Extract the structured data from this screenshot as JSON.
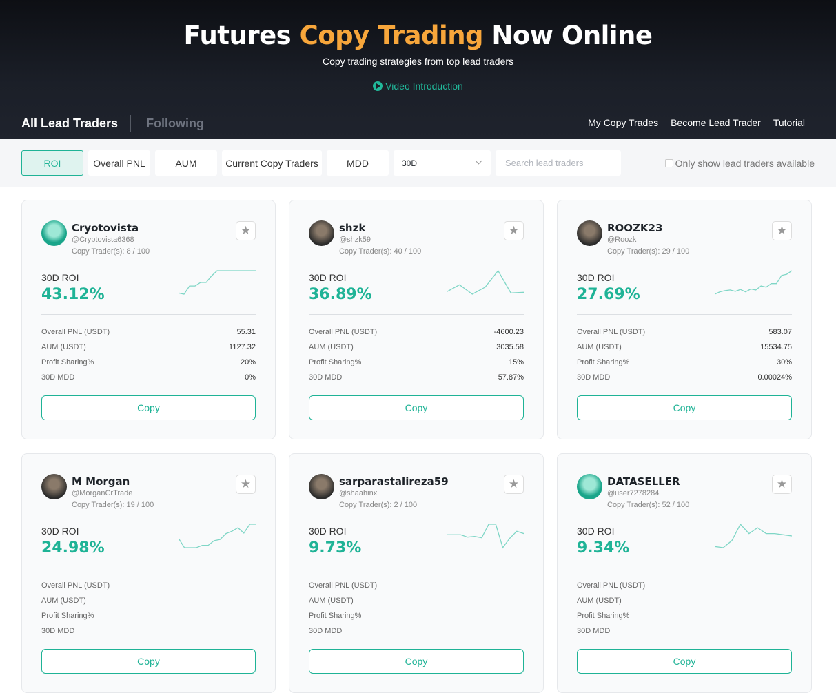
{
  "hero": {
    "title_pre": "Futures ",
    "title_hl": "Copy Trading",
    "title_post": " Now Online",
    "subtitle": "Copy trading strategies from top lead traders",
    "video": "Video Introduction",
    "accent": "#f7a63b",
    "green": "#1fb396"
  },
  "tabs": [
    {
      "label": "All Lead Traders",
      "active": true
    },
    {
      "label": "Following",
      "active": false
    }
  ],
  "links": [
    "My Copy Trades",
    "Become Lead Trader",
    "Tutorial"
  ],
  "filters": {
    "sort": [
      "ROI",
      "Overall PNL",
      "AUM",
      "Current Copy Traders",
      "MDD"
    ],
    "active": "ROI",
    "period": "30D",
    "search_placeholder": "Search lead traders",
    "available_label": "Only show lead traders available"
  },
  "card_labels": {
    "roi": "30D ROI",
    "pnl": "Overall PNL (USDT)",
    "aum": "AUM (USDT)",
    "share": "Profit Sharing%",
    "mdd": "30D MDD",
    "copy": "Copy"
  },
  "traders": [
    {
      "name": "Cryotovista",
      "handle": "@Cryptovista6368",
      "copiers": "Copy Trader(s): 8 / 100",
      "roi": "43.12%",
      "pnl": "55.31",
      "aum": "1127.32",
      "share": "20%",
      "mdd": "0%",
      "avatar": "teal",
      "spark": [
        5,
        0,
        35,
        35,
        50,
        50,
        78,
        100,
        100,
        100,
        100,
        100,
        100,
        100,
        100
      ]
    },
    {
      "name": "shzk",
      "handle": "@shzk59",
      "copiers": "Copy Trader(s): 40 / 100",
      "roi": "36.89%",
      "pnl": "-4600.23",
      "aum": "3035.58",
      "share": "15%",
      "mdd": "57.87%",
      "avatar": "dark",
      "spark": [
        10,
        40,
        0,
        30,
        100,
        5,
        8
      ]
    },
    {
      "name": "ROOZK23",
      "handle": "@Roozk",
      "copiers": "Copy Trader(s): 29 / 100",
      "roi": "27.69%",
      "pnl": "583.07",
      "aum": "15534.75",
      "share": "30%",
      "mdd": "0.00024%",
      "avatar": "dark",
      "spark": [
        0,
        10,
        15,
        18,
        12,
        20,
        10,
        22,
        18,
        35,
        30,
        45,
        45,
        80,
        85,
        100
      ]
    },
    {
      "name": "M Morgan",
      "handle": "@MorganCrTrade",
      "copiers": "Copy Trader(s): 19 / 100",
      "roi": "24.98%",
      "pnl": "",
      "aum": "",
      "share": "",
      "mdd": "",
      "avatar": "dark",
      "spark": [
        40,
        0,
        0,
        0,
        10,
        10,
        30,
        35,
        60,
        70,
        85,
        62,
        100,
        100
      ]
    },
    {
      "name": "sarparastalireza59",
      "handle": "@shaahinx",
      "copiers": "Copy Trader(s): 2 / 100",
      "roi": "9.73%",
      "pnl": "",
      "aum": "",
      "share": "",
      "mdd": "",
      "avatar": "dark",
      "spark": [
        55,
        55,
        55,
        45,
        48,
        42,
        100,
        100,
        0,
        40,
        70,
        60
      ]
    },
    {
      "name": "DATASELLER",
      "handle": "@user7278284",
      "copiers": "Copy Trader(s): 52 / 100",
      "roi": "9.34%",
      "pnl": "",
      "aum": "",
      "share": "",
      "mdd": "",
      "avatar": "teal",
      "spark": [
        5,
        0,
        30,
        100,
        60,
        85,
        60,
        60,
        55,
        50
      ]
    }
  ]
}
